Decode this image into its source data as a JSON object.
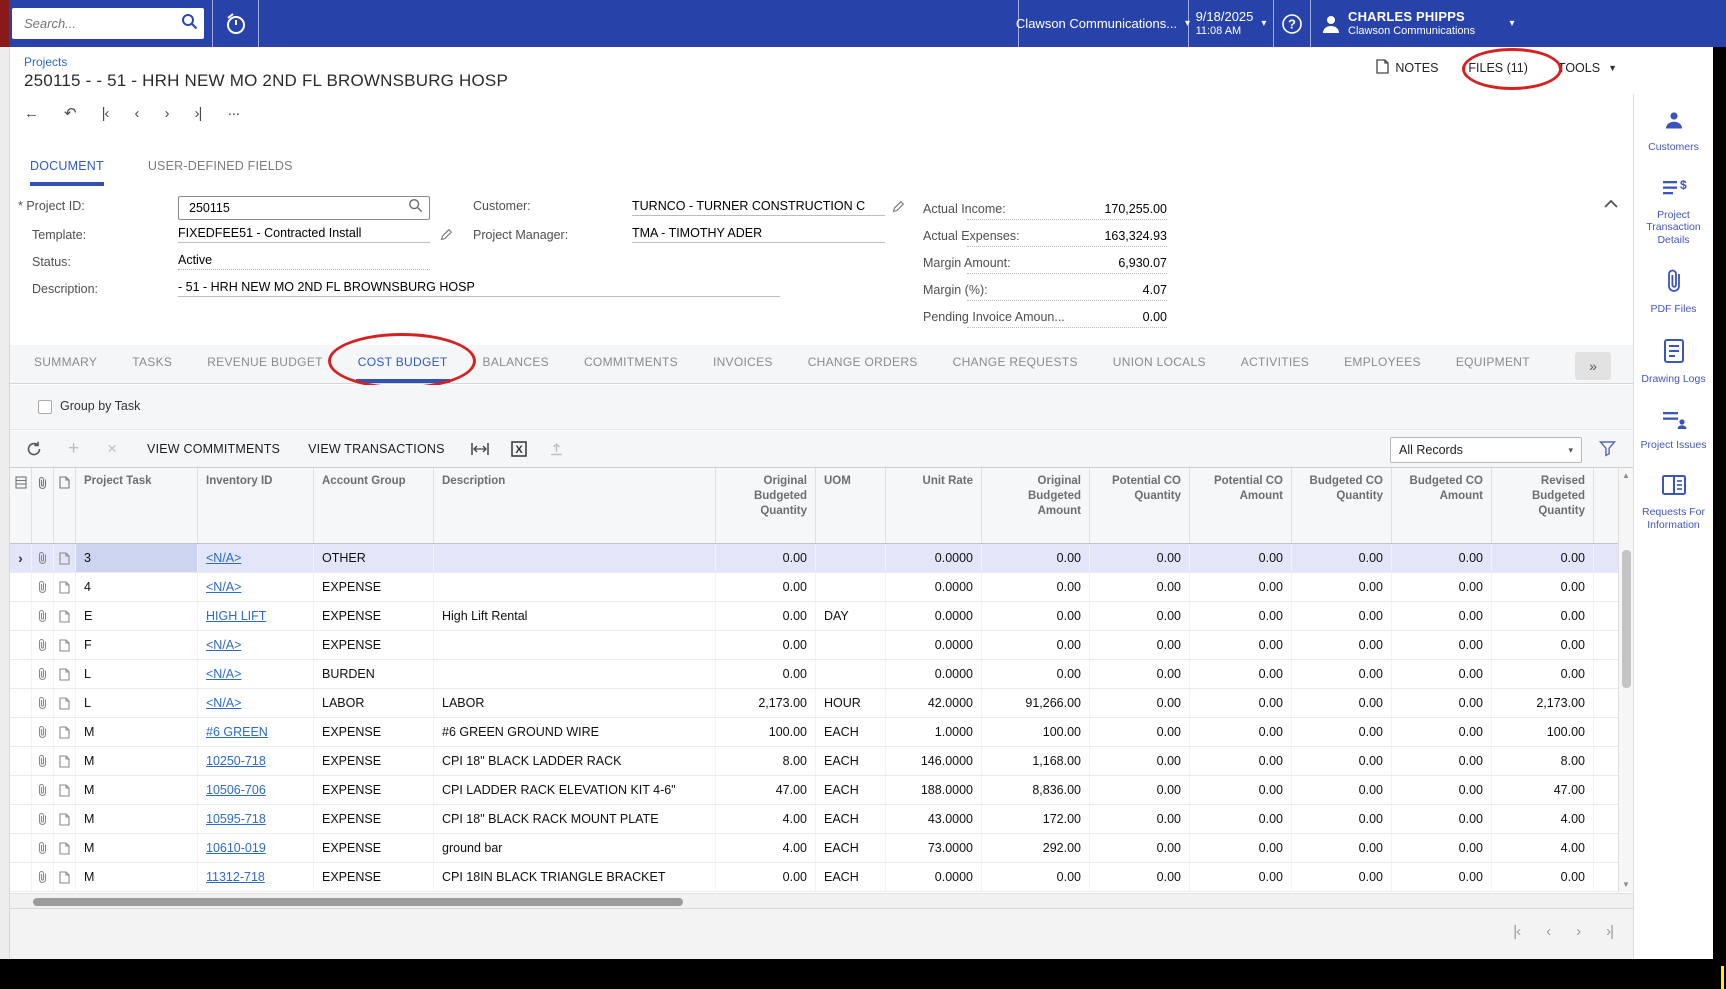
{
  "colors": {
    "topbar_blue": "#2742a9",
    "link_blue": "#2e6bc4",
    "active_tab_blue": "#2f5bc0",
    "selected_row_bg": "#e2e6f8",
    "annotation_red": "#d42222",
    "sidebar_icon_blue": "#3b53bd"
  },
  "topbar": {
    "search_placeholder": "Search...",
    "company": "Clawson Communications...",
    "date": "9/18/2025",
    "time": "11:08 AM",
    "user_name": "CHARLES PHIPPS",
    "user_company": "Clawson Communications"
  },
  "header": {
    "breadcrumb": "Projects",
    "title": "250115 - - 51 - HRH NEW MO 2ND FL BROWNSBURG HOSP",
    "notes": "NOTES",
    "files": "FILES (11)",
    "tools": "TOOLS"
  },
  "form_tabs": {
    "document": "DOCUMENT",
    "user_defined": "USER-DEFINED FIELDS"
  },
  "form": {
    "project_id_label": "Project ID:",
    "project_id": "250115",
    "template_label": "Template:",
    "template": "FIXEDFEE51 - Contracted Install",
    "status_label": "Status:",
    "status": "Active",
    "description_label": "Description:",
    "description": "- 51 - HRH NEW MO 2ND FL BROWNSBURG HOSP",
    "customer_label": "Customer:",
    "customer": "TURNCO - TURNER CONSTRUCTION C",
    "project_manager_label": "Project Manager:",
    "project_manager": "TMA - TIMOTHY ADER",
    "metrics": [
      {
        "label": "Actual Income:",
        "value": "170,255.00"
      },
      {
        "label": "Actual Expenses:",
        "value": "163,324.93"
      },
      {
        "label": "Margin Amount:",
        "value": "6,930.07"
      },
      {
        "label": "Margin (%):",
        "value": "4.07"
      },
      {
        "label": "Pending Invoice Amoun...",
        "value": "0.00"
      }
    ]
  },
  "tabs": [
    {
      "label": "SUMMARY",
      "active": false
    },
    {
      "label": "TASKS",
      "active": false
    },
    {
      "label": "REVENUE BUDGET",
      "active": false
    },
    {
      "label": "COST BUDGET",
      "active": true
    },
    {
      "label": "BALANCES",
      "active": false
    },
    {
      "label": "COMMITMENTS",
      "active": false
    },
    {
      "label": "INVOICES",
      "active": false
    },
    {
      "label": "CHANGE ORDERS",
      "active": false
    },
    {
      "label": "CHANGE REQUESTS",
      "active": false
    },
    {
      "label": "UNION LOCALS",
      "active": false
    },
    {
      "label": "ACTIVITIES",
      "active": false
    },
    {
      "label": "EMPLOYEES",
      "active": false
    },
    {
      "label": "EQUIPMENT",
      "active": false
    }
  ],
  "grid_toolbar": {
    "group_by": "Group by Task",
    "view_commitments": "VIEW COMMITMENTS",
    "view_transactions": "VIEW TRANSACTIONS",
    "records_filter": "All Records"
  },
  "grid": {
    "columns": [
      "Project Task",
      "Inventory ID",
      "Account Group",
      "Description",
      "Original Budgeted Quantity",
      "UOM",
      "Unit Rate",
      "Original Budgeted Amount",
      "Potential CO Quantity",
      "Potential CO Amount",
      "Budgeted CO Quantity",
      "Budgeted CO Amount",
      "Revised Budgeted Quantity"
    ],
    "rows": [
      {
        "selected": true,
        "task": "3",
        "inventory": "<N/A>",
        "account_group": "OTHER",
        "description": "",
        "obq": "0.00",
        "uom": "",
        "rate": "0.0000",
        "oba": "0.00",
        "pcq": "0.00",
        "pca": "0.00",
        "bcq": "0.00",
        "bca": "0.00",
        "rbq": "0.00"
      },
      {
        "selected": false,
        "task": "4",
        "inventory": "<N/A>",
        "account_group": "EXPENSE",
        "description": "",
        "obq": "0.00",
        "uom": "",
        "rate": "0.0000",
        "oba": "0.00",
        "pcq": "0.00",
        "pca": "0.00",
        "bcq": "0.00",
        "bca": "0.00",
        "rbq": "0.00"
      },
      {
        "selected": false,
        "task": "E",
        "inventory": "HIGH LIFT",
        "account_group": "EXPENSE",
        "description": "High Lift Rental",
        "obq": "0.00",
        "uom": "DAY",
        "rate": "0.0000",
        "oba": "0.00",
        "pcq": "0.00",
        "pca": "0.00",
        "bcq": "0.00",
        "bca": "0.00",
        "rbq": "0.00"
      },
      {
        "selected": false,
        "task": "F",
        "inventory": "<N/A>",
        "account_group": "EXPENSE",
        "description": "",
        "obq": "0.00",
        "uom": "",
        "rate": "0.0000",
        "oba": "0.00",
        "pcq": "0.00",
        "pca": "0.00",
        "bcq": "0.00",
        "bca": "0.00",
        "rbq": "0.00"
      },
      {
        "selected": false,
        "task": "L",
        "inventory": "<N/A>",
        "account_group": "BURDEN",
        "description": "",
        "obq": "0.00",
        "uom": "",
        "rate": "0.0000",
        "oba": "0.00",
        "pcq": "0.00",
        "pca": "0.00",
        "bcq": "0.00",
        "bca": "0.00",
        "rbq": "0.00"
      },
      {
        "selected": false,
        "task": "L",
        "inventory": "<N/A>",
        "account_group": "LABOR",
        "description": "LABOR",
        "obq": "2,173.00",
        "uom": "HOUR",
        "rate": "42.0000",
        "oba": "91,266.00",
        "pcq": "0.00",
        "pca": "0.00",
        "bcq": "0.00",
        "bca": "0.00",
        "rbq": "2,173.00"
      },
      {
        "selected": false,
        "task": "M",
        "inventory": "#6 GREEN",
        "account_group": "EXPENSE",
        "description": "#6 GREEN GROUND WIRE",
        "obq": "100.00",
        "uom": "EACH",
        "rate": "1.0000",
        "oba": "100.00",
        "pcq": "0.00",
        "pca": "0.00",
        "bcq": "0.00",
        "bca": "0.00",
        "rbq": "100.00"
      },
      {
        "selected": false,
        "task": "M",
        "inventory": "10250-718",
        "account_group": "EXPENSE",
        "description": "CPI 18\" BLACK LADDER RACK",
        "obq": "8.00",
        "uom": "EACH",
        "rate": "146.0000",
        "oba": "1,168.00",
        "pcq": "0.00",
        "pca": "0.00",
        "bcq": "0.00",
        "bca": "0.00",
        "rbq": "8.00"
      },
      {
        "selected": false,
        "task": "M",
        "inventory": "10506-706",
        "account_group": "EXPENSE",
        "description": "CPI LADDER RACK ELEVATION KIT 4-6\"",
        "obq": "47.00",
        "uom": "EACH",
        "rate": "188.0000",
        "oba": "8,836.00",
        "pcq": "0.00",
        "pca": "0.00",
        "bcq": "0.00",
        "bca": "0.00",
        "rbq": "47.00"
      },
      {
        "selected": false,
        "task": "M",
        "inventory": "10595-718",
        "account_group": "EXPENSE",
        "description": "CPI 18\" BLACK RACK MOUNT PLATE",
        "obq": "4.00",
        "uom": "EACH",
        "rate": "43.0000",
        "oba": "172.00",
        "pcq": "0.00",
        "pca": "0.00",
        "bcq": "0.00",
        "bca": "0.00",
        "rbq": "4.00"
      },
      {
        "selected": false,
        "task": "M",
        "inventory": "10610-019",
        "account_group": "EXPENSE",
        "description": "ground bar",
        "obq": "4.00",
        "uom": "EACH",
        "rate": "73.0000",
        "oba": "292.00",
        "pcq": "0.00",
        "pca": "0.00",
        "bcq": "0.00",
        "bca": "0.00",
        "rbq": "4.00"
      },
      {
        "selected": false,
        "task": "M",
        "inventory": "11312-718",
        "account_group": "EXPENSE",
        "description": "CPI 18IN BLACK TRIANGLE BRACKET",
        "obq": "0.00",
        "uom": "EACH",
        "rate": "0.0000",
        "oba": "0.00",
        "pcq": "0.00",
        "pca": "0.00",
        "bcq": "0.00",
        "bca": "0.00",
        "rbq": "0.00"
      }
    ]
  },
  "sidebar": {
    "items": [
      {
        "icon": "customers-icon",
        "label": "Customers"
      },
      {
        "icon": "project-transaction-details-icon",
        "label": "Project Transaction Details"
      },
      {
        "icon": "pdf-files-icon",
        "label": "PDF Files"
      },
      {
        "icon": "drawing-logs-icon",
        "label": "Drawing Logs"
      },
      {
        "icon": "project-issues-icon",
        "label": "Project Issues"
      },
      {
        "icon": "requests-for-information-icon",
        "label": "Requests For Information"
      }
    ]
  }
}
